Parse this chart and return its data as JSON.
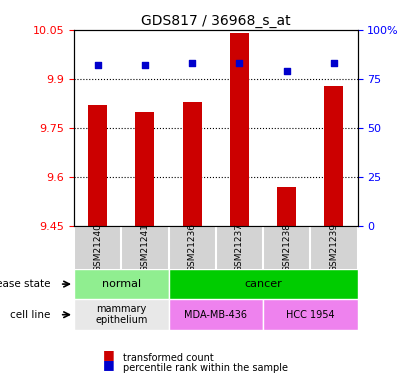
{
  "title": "GDS817 / 36968_s_at",
  "samples": [
    "GSM21240",
    "GSM21241",
    "GSM21236",
    "GSM21237",
    "GSM21238",
    "GSM21239"
  ],
  "transformed_counts": [
    9.82,
    9.8,
    9.83,
    10.04,
    9.57,
    9.88
  ],
  "percentile_ranks": [
    82,
    82,
    83,
    83,
    79,
    83
  ],
  "ylim_left": [
    9.45,
    10.05
  ],
  "ylim_right": [
    0,
    100
  ],
  "yticks_left": [
    9.45,
    9.6,
    9.75,
    9.9,
    10.05
  ],
  "yticks_right": [
    0,
    25,
    50,
    75,
    100
  ],
  "ytick_labels_right": [
    "0",
    "25",
    "50",
    "75",
    "100%"
  ],
  "hlines": [
    9.6,
    9.75,
    9.9
  ],
  "bar_color": "#cc0000",
  "dot_color": "#0000cc",
  "bar_width": 0.4,
  "disease_states": [
    {
      "label": "normal",
      "spans": [
        0,
        2
      ],
      "color": "#90ee90"
    },
    {
      "label": "cancer",
      "spans": [
        2,
        6
      ],
      "color": "#00cc00"
    }
  ],
  "cell_lines": [
    {
      "label": "mammary\nepithelium",
      "spans": [
        0,
        2
      ],
      "color": "#e8e8e8"
    },
    {
      "label": "MDA-MB-436",
      "spans": [
        2,
        4
      ],
      "color": "#ee82ee"
    },
    {
      "label": "HCC 1954",
      "spans": [
        4,
        6
      ],
      "color": "#ee82ee"
    }
  ],
  "disease_label": "disease state",
  "cell_line_label": "cell line",
  "legend_items": [
    {
      "label": "transformed count",
      "color": "#cc0000",
      "marker": "s"
    },
    {
      "label": "percentile rank within the sample",
      "color": "#0000cc",
      "marker": "s"
    }
  ],
  "bg_color": "#d3d3d3"
}
